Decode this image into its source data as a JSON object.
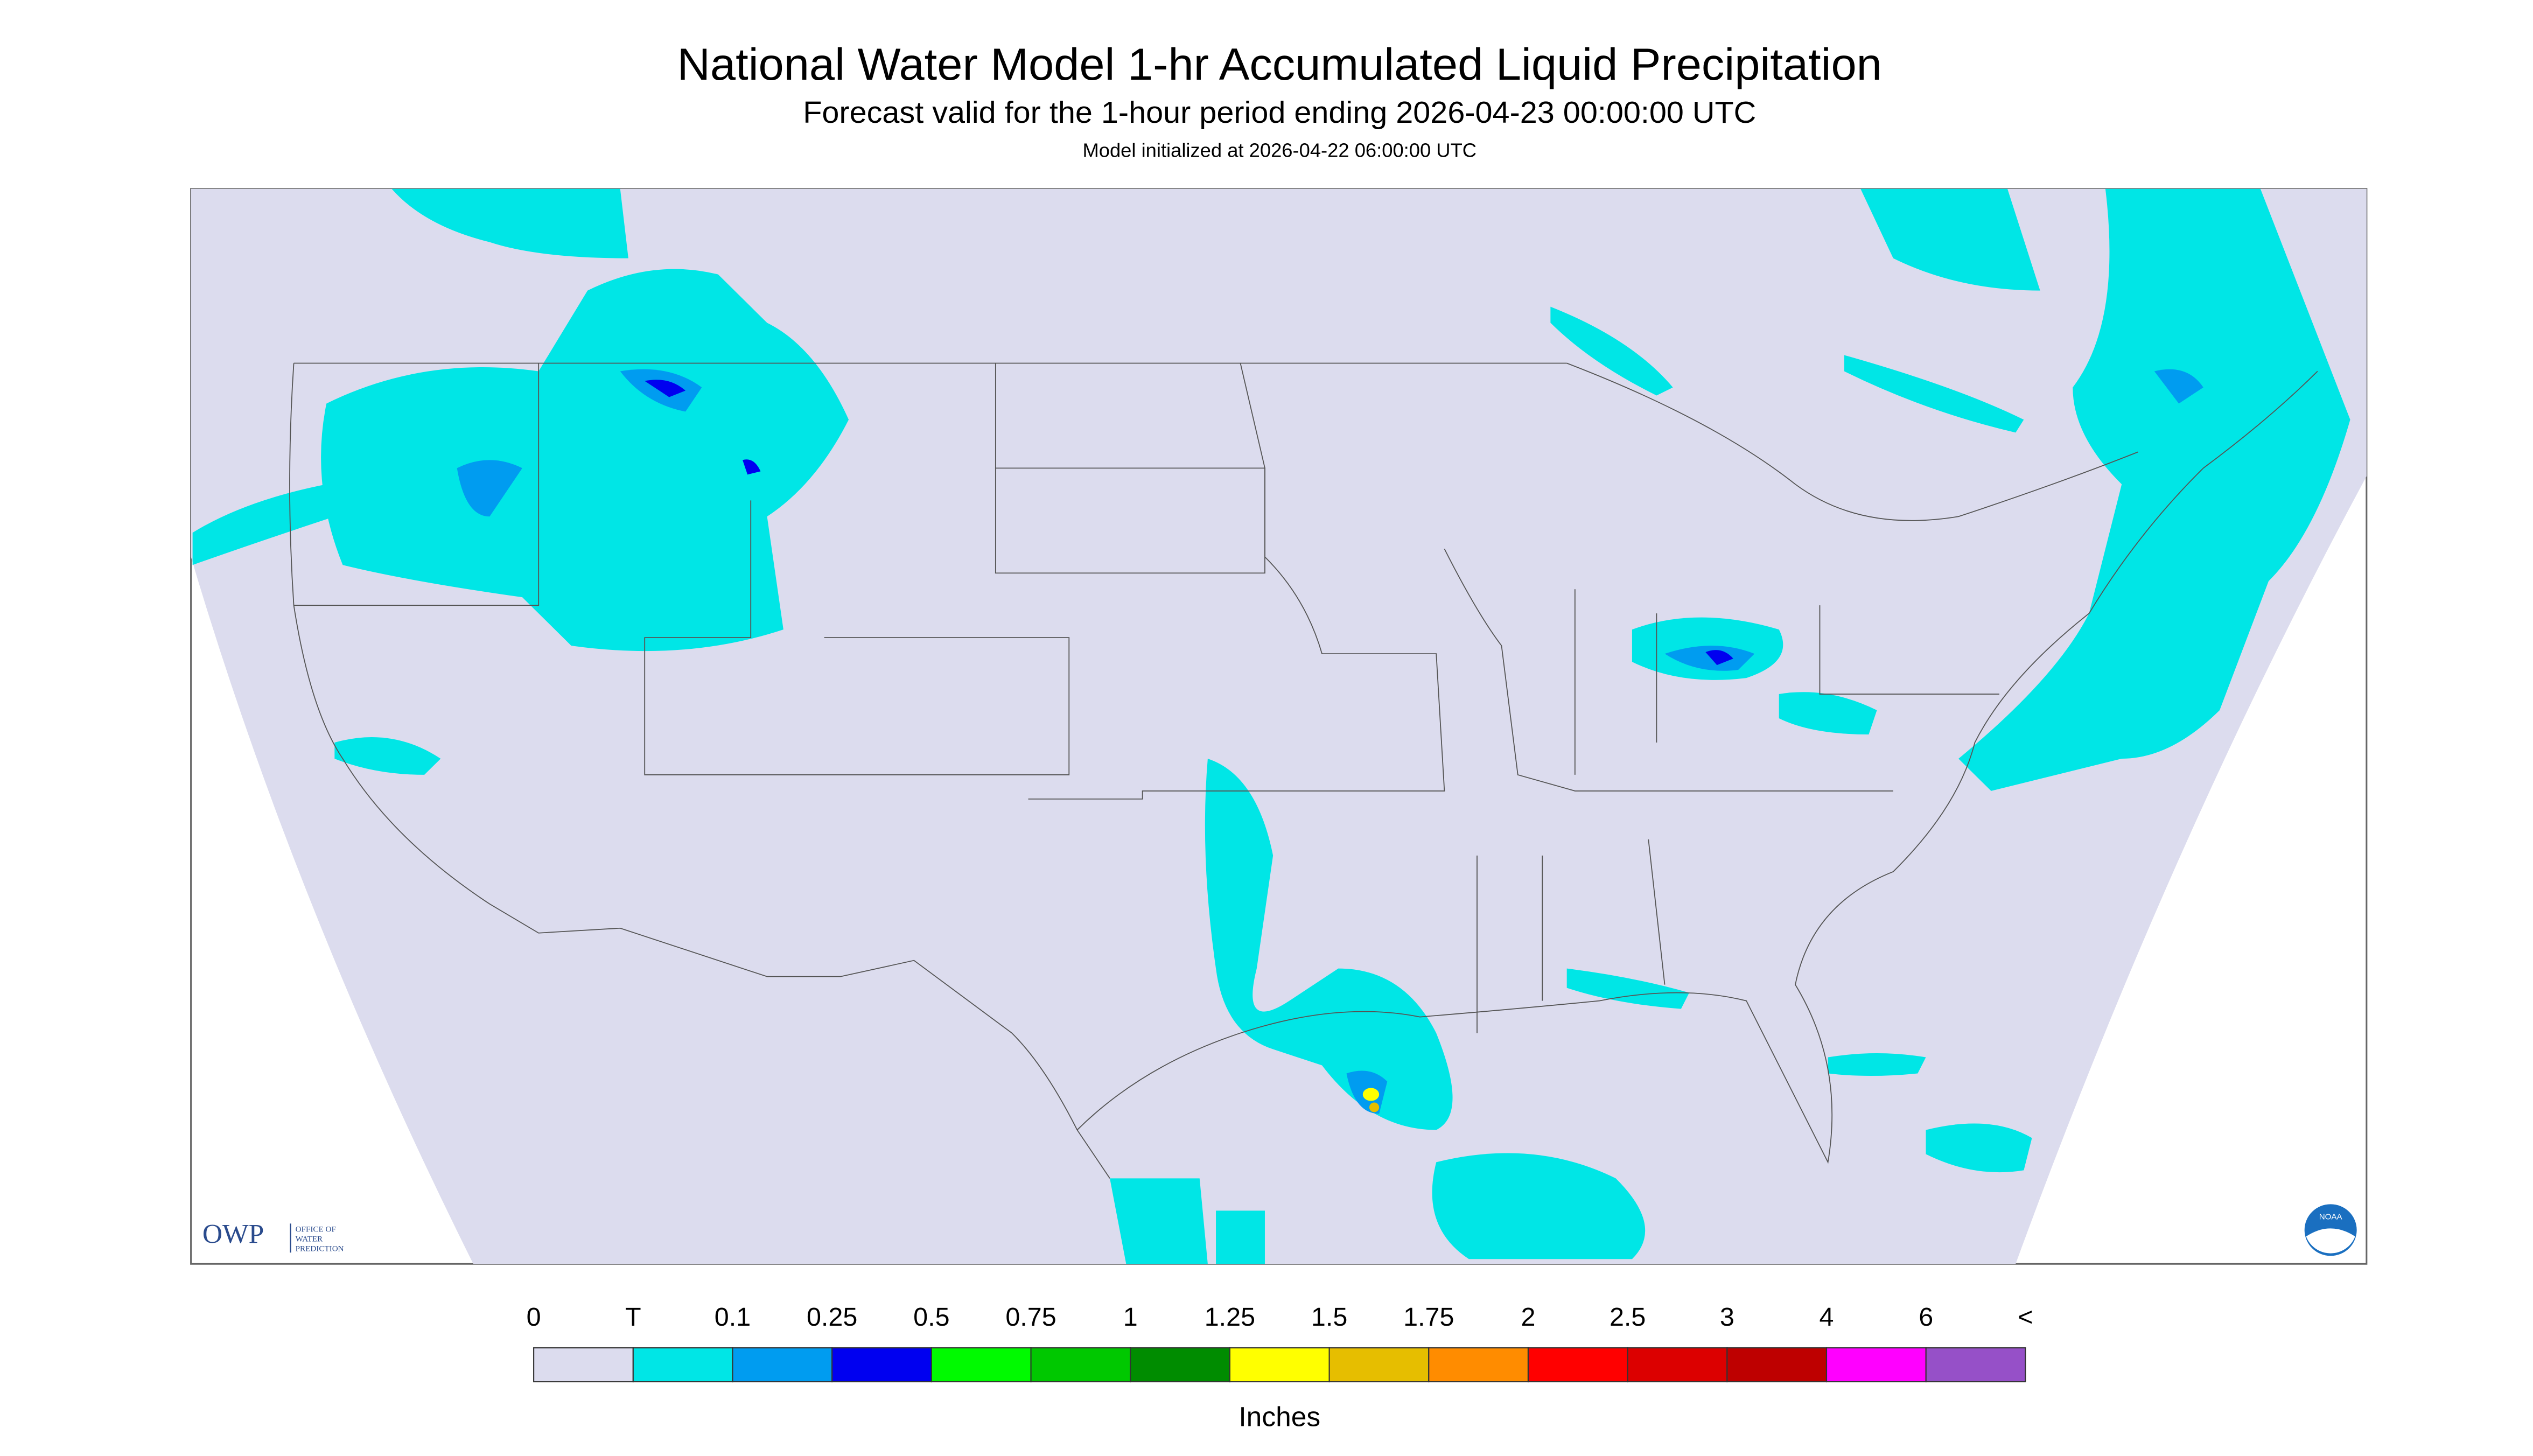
{
  "header": {
    "title": "National Water Model 1-hr Accumulated Liquid Precipitation",
    "subtitle": "Forecast valid for the 1-hour period ending 2026-04-23 00:00:00 UTC",
    "initialized": "Model initialized at 2026-04-22 06:00:00 UTC"
  },
  "legend": {
    "labels": [
      "0",
      "T",
      "0.1",
      "0.25",
      "0.5",
      "0.75",
      "1",
      "1.25",
      "1.5",
      "1.75",
      "2",
      "2.5",
      "3",
      "4",
      "6",
      "<"
    ],
    "colors": [
      "#dcdcee",
      "#00e6e6",
      "#009cf0",
      "#0000f0",
      "#00fa00",
      "#00c800",
      "#008c00",
      "#ffff00",
      "#e6be00",
      "#ff8c00",
      "#ff0000",
      "#dc0000",
      "#be0000",
      "#ff00ff",
      "#9650c8"
    ],
    "units": "Inches"
  },
  "logos": {
    "owp": "OWP",
    "owp_lines": [
      "OFFICE OF",
      "WATER",
      "PREDICTION"
    ],
    "noaa": "NOAA"
  }
}
